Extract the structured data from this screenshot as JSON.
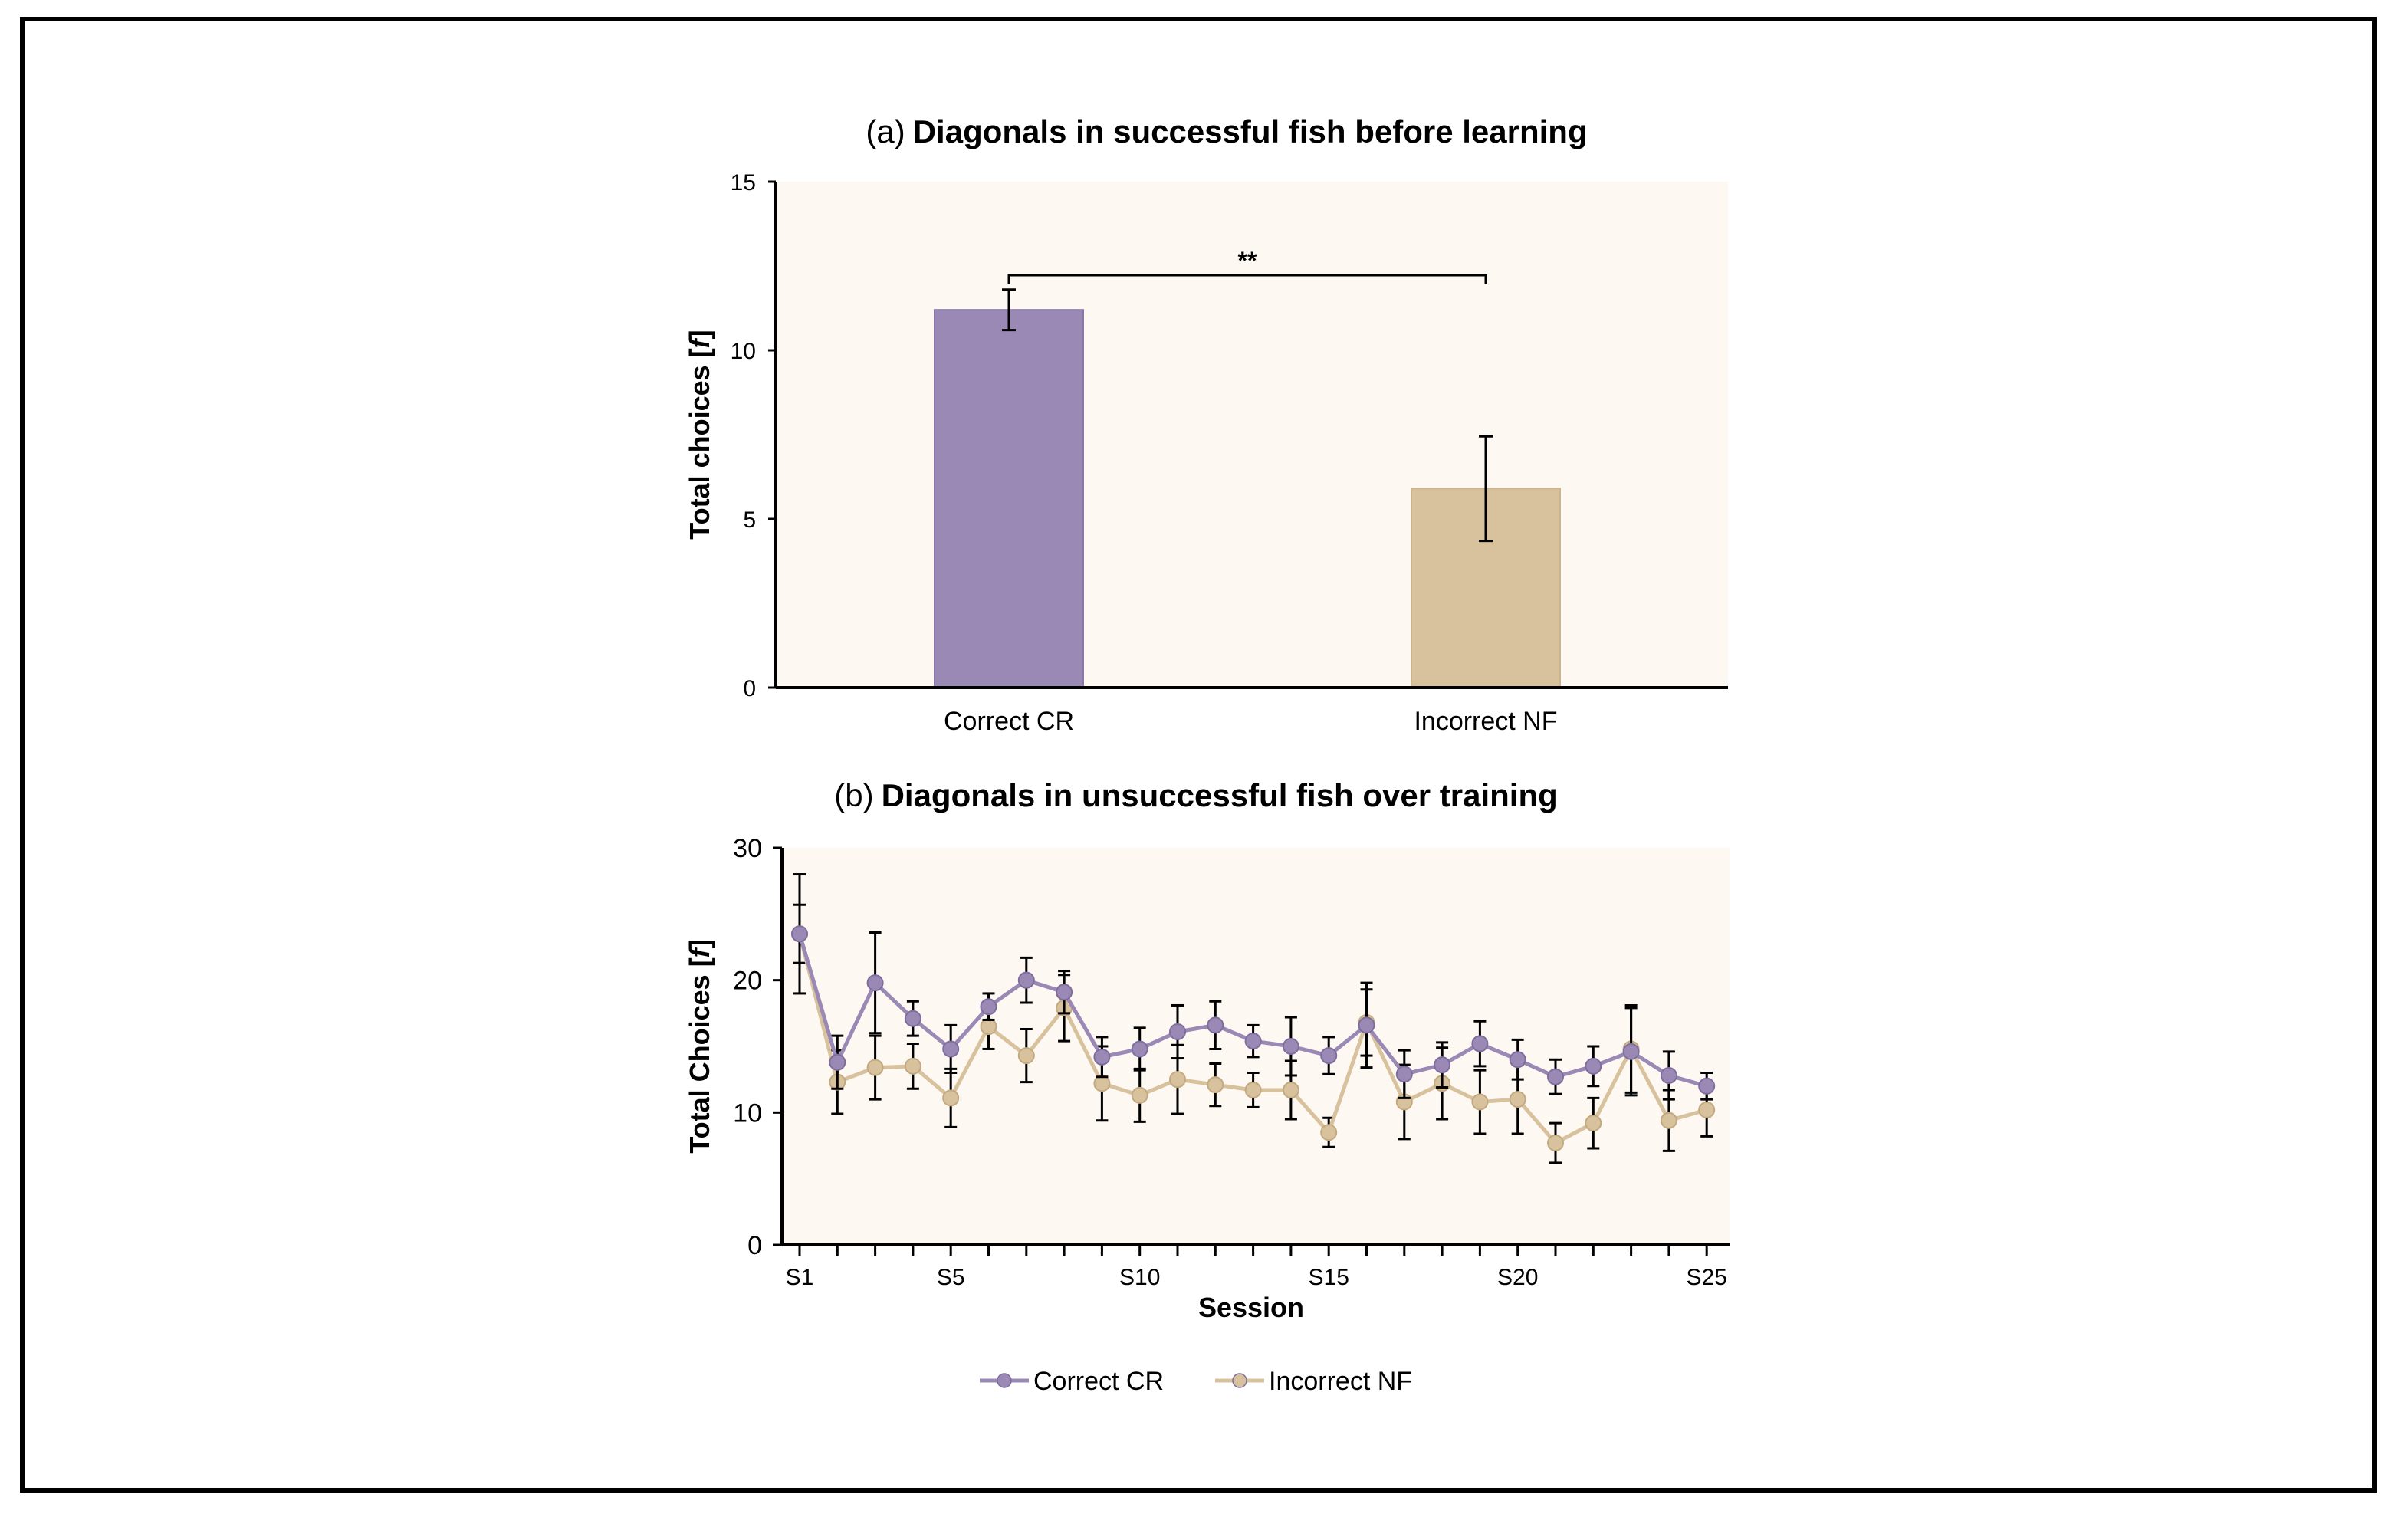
{
  "chart_data": [
    {
      "type": "bar",
      "title_prefix": "(a)",
      "title": "Diagonals in successful fish before learning",
      "ylabel": "Total choices [",
      "ylabel_italic": "f",
      "ylabel_suffix": "]",
      "ylim": [
        0,
        15
      ],
      "yticks": [
        0,
        5,
        10,
        15
      ],
      "categories": [
        "Correct CR",
        "Incorrect NF"
      ],
      "values": [
        11.2,
        5.9
      ],
      "errors": [
        0.6,
        1.55
      ],
      "colors": [
        "#9a88b5",
        "#d8c29e"
      ],
      "significance": {
        "from": 0,
        "to": 1,
        "label": "**"
      },
      "background": "#fdf8f2"
    },
    {
      "type": "line",
      "title_prefix": "(b)",
      "title": "Diagonals in unsuccessful fish over training",
      "ylabel": "Total Choices [",
      "ylabel_italic": "f",
      "ylabel_suffix": "]",
      "xlabel": "Session",
      "ylim": [
        0,
        30
      ],
      "yticks": [
        0,
        10,
        20,
        30
      ],
      "x": [
        1,
        2,
        3,
        4,
        5,
        6,
        7,
        8,
        9,
        10,
        11,
        12,
        13,
        14,
        15,
        16,
        17,
        18,
        19,
        20,
        21,
        22,
        23,
        24,
        25
      ],
      "xtick_labels": [
        {
          "x": 1,
          "label": "S1"
        },
        {
          "x": 5,
          "label": "S5"
        },
        {
          "x": 10,
          "label": "S10"
        },
        {
          "x": 15,
          "label": "S15"
        },
        {
          "x": 20,
          "label": "S20"
        },
        {
          "x": 25,
          "label": "S25"
        }
      ],
      "series": [
        {
          "name": "Correct CR",
          "color": "#9a88b5",
          "values": [
            23.5,
            13.8,
            19.8,
            17.1,
            14.8,
            18.0,
            20.0,
            19.1,
            14.2,
            14.8,
            16.1,
            16.6,
            15.4,
            15.0,
            14.3,
            16.6,
            12.9,
            13.6,
            15.2,
            14.0,
            12.7,
            13.5,
            14.6,
            12.8,
            12.0
          ],
          "errors": [
            4.5,
            2.0,
            3.8,
            1.3,
            1.8,
            1.0,
            1.7,
            1.6,
            1.5,
            1.6,
            2.0,
            1.8,
            1.2,
            2.2,
            1.4,
            3.2,
            1.8,
            1.7,
            1.7,
            1.5,
            1.3,
            1.5,
            3.3,
            1.8,
            1.0
          ]
        },
        {
          "name": "Incorrect NF",
          "color": "#d8c29e",
          "values": [
            23.5,
            12.3,
            13.4,
            13.5,
            11.1,
            16.5,
            14.3,
            17.9,
            12.2,
            11.3,
            12.5,
            12.1,
            11.7,
            11.7,
            8.5,
            16.8,
            10.8,
            12.2,
            10.8,
            11.0,
            7.7,
            9.2,
            14.8,
            9.4,
            10.2
          ],
          "errors": [
            2.2,
            2.4,
            2.4,
            1.7,
            2.2,
            1.7,
            2.0,
            2.5,
            2.8,
            2.0,
            2.6,
            1.6,
            1.3,
            2.2,
            1.1,
            2.5,
            2.8,
            2.7,
            2.4,
            2.6,
            1.5,
            1.9,
            3.3,
            2.3,
            2.0
          ]
        }
      ],
      "legend": [
        "Correct CR",
        "Incorrect NF"
      ],
      "legend_position": "bottom-center",
      "background": "#fdf8f2"
    }
  ]
}
